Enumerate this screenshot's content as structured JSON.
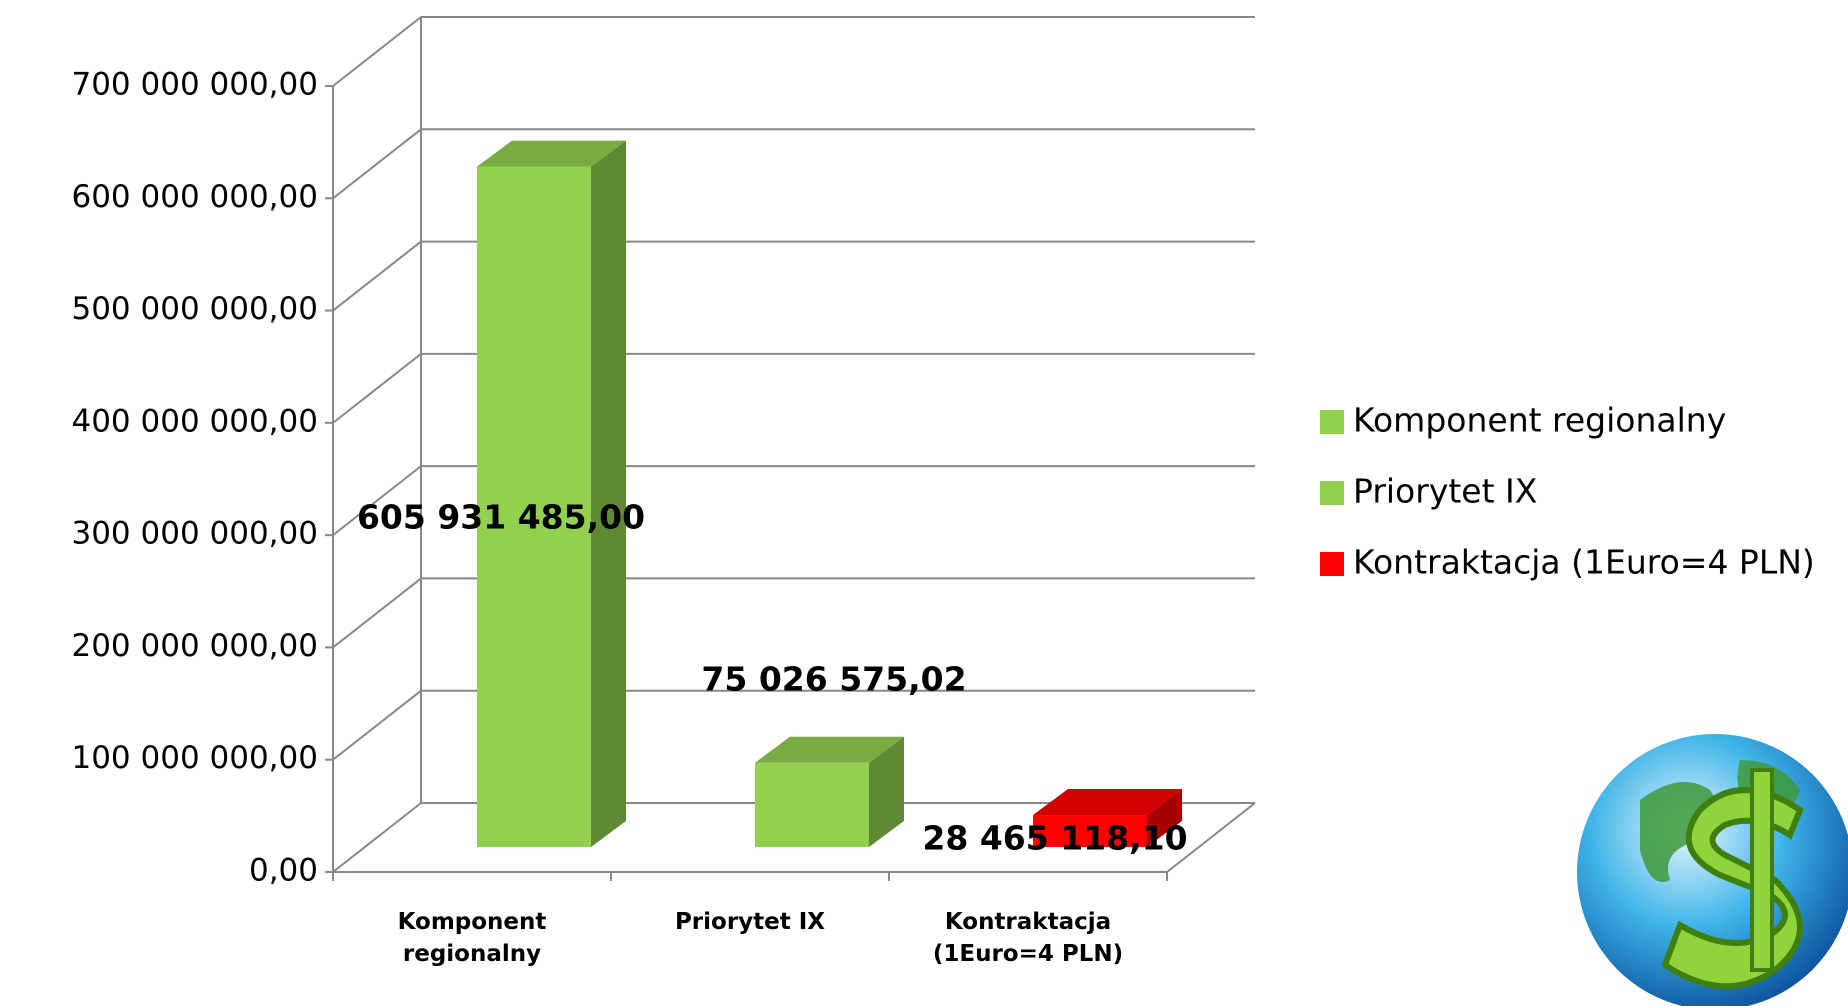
{
  "chart_data": {
    "type": "bar3d",
    "categories": [
      "Komponent regionalny",
      "Priorytet IX",
      "Kontraktacja (1Euro=4 PLN)"
    ],
    "values": [
      605931485.0,
      75026575.02,
      28465118.1
    ],
    "value_labels": [
      "605 931 485,00",
      "75 026 575,02",
      "28 465 118,10"
    ],
    "colors": [
      "#92d050",
      "#92d050",
      "#ff0000"
    ],
    "ylim": [
      0,
      700000000
    ],
    "yticks": [
      {
        "value": 0,
        "label": "0,00"
      },
      {
        "value": 100000000,
        "label": "100 000 000,00"
      },
      {
        "value": 200000000,
        "label": "200 000 000,00"
      },
      {
        "value": 300000000,
        "label": "300 000 000,00"
      },
      {
        "value": 400000000,
        "label": "400 000 000,00"
      },
      {
        "value": 500000000,
        "label": "500 000 000,00"
      },
      {
        "value": 600000000,
        "label": "600 000 000,00"
      },
      {
        "value": 700000000,
        "label": "700 000 000,00"
      }
    ],
    "grid": true,
    "legend": "right"
  }
}
